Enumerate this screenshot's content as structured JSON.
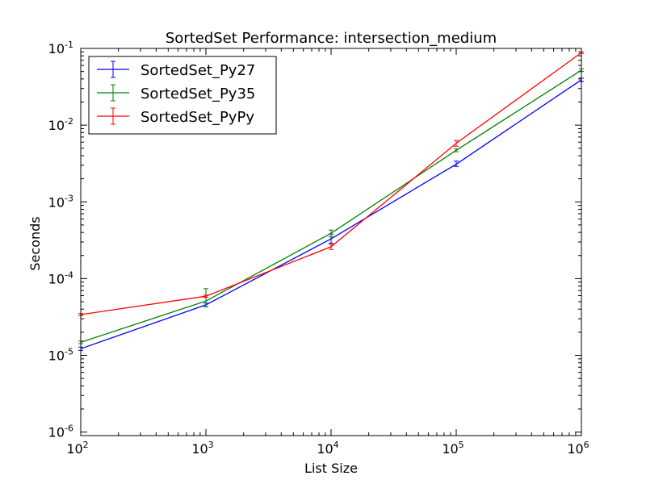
{
  "chart_data": {
    "type": "line",
    "title": "SortedSet Performance: intersection_medium",
    "xlabel": "List Size",
    "ylabel": "Seconds",
    "x_scale": "log",
    "y_scale": "log",
    "xlim": [
      100,
      1000000
    ],
    "ylim": [
      9e-07,
      0.1
    ],
    "grid": false,
    "legend_position": "top-left",
    "x_ticks": [
      {
        "value": 100,
        "base": "10",
        "exp": "2"
      },
      {
        "value": 1000,
        "base": "10",
        "exp": "3"
      },
      {
        "value": 10000,
        "base": "10",
        "exp": "4"
      },
      {
        "value": 100000,
        "base": "10",
        "exp": "5"
      },
      {
        "value": 1000000,
        "base": "10",
        "exp": "6"
      }
    ],
    "y_ticks": [
      {
        "value": 1e-06,
        "base": "10",
        "exp": "-6"
      },
      {
        "value": 1e-05,
        "base": "10",
        "exp": "-5"
      },
      {
        "value": 0.0001,
        "base": "10",
        "exp": "-4"
      },
      {
        "value": 0.001,
        "base": "10",
        "exp": "-3"
      },
      {
        "value": 0.01,
        "base": "10",
        "exp": "-2"
      },
      {
        "value": 0.1,
        "base": "10",
        "exp": "-1"
      }
    ],
    "x": [
      100,
      1000,
      10000,
      100000,
      1000000
    ],
    "series": [
      {
        "name": "SortedSet_Py27",
        "color": "#0000ff",
        "values": [
          1.22e-05,
          4.55e-05,
          0.00033,
          0.0031,
          0.039
        ],
        "err_low": [
          1.16e-05,
          4.3e-05,
          0.00029,
          0.0029,
          0.037
        ],
        "err_high": [
          1.28e-05,
          4.8e-05,
          0.00038,
          0.0034,
          0.041
        ]
      },
      {
        "name": "SortedSet_Py35",
        "color": "#008000",
        "values": [
          1.48e-05,
          5.1e-05,
          0.00039,
          0.0047,
          0.052
        ],
        "err_low": [
          1.42e-05,
          4.3e-05,
          0.00035,
          0.0045,
          0.05
        ],
        "err_high": [
          1.54e-05,
          7.4e-05,
          0.00043,
          0.0049,
          0.054
        ]
      },
      {
        "name": "SortedSet_PyPy",
        "color": "#ff0000",
        "values": [
          3.4e-05,
          5.9e-05,
          0.00026,
          0.0058,
          0.088
        ],
        "err_low": [
          3.3e-05,
          5.7e-05,
          0.00024,
          0.0053,
          0.086
        ],
        "err_high": [
          3.5e-05,
          6.1e-05,
          0.00028,
          0.0063,
          0.09
        ]
      }
    ]
  }
}
